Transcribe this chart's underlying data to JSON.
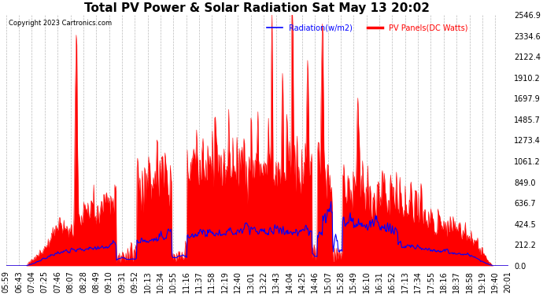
{
  "title": "Total PV Power & Solar Radiation Sat May 13 20:02",
  "copyright": "Copyright 2023 Cartronics.com",
  "legend_radiation": "Radiation(w/m2)",
  "legend_pv": "PV Panels(DC Watts)",
  "ylabel_right_ticks": [
    0.0,
    212.2,
    424.5,
    636.7,
    849.0,
    1061.2,
    1273.4,
    1485.7,
    1697.9,
    1910.2,
    2122.4,
    2334.6,
    2546.9
  ],
  "ylim": [
    0,
    2546.9
  ],
  "background_color": "#ffffff",
  "plot_bg_color": "#ffffff",
  "grid_color": "#bbbbbb",
  "pv_fill_color": "#ff0000",
  "pv_line_color": "#ff0000",
  "radiation_line_color": "#0000ff",
  "title_fontsize": 11,
  "tick_fontsize": 7,
  "n_points": 860
}
